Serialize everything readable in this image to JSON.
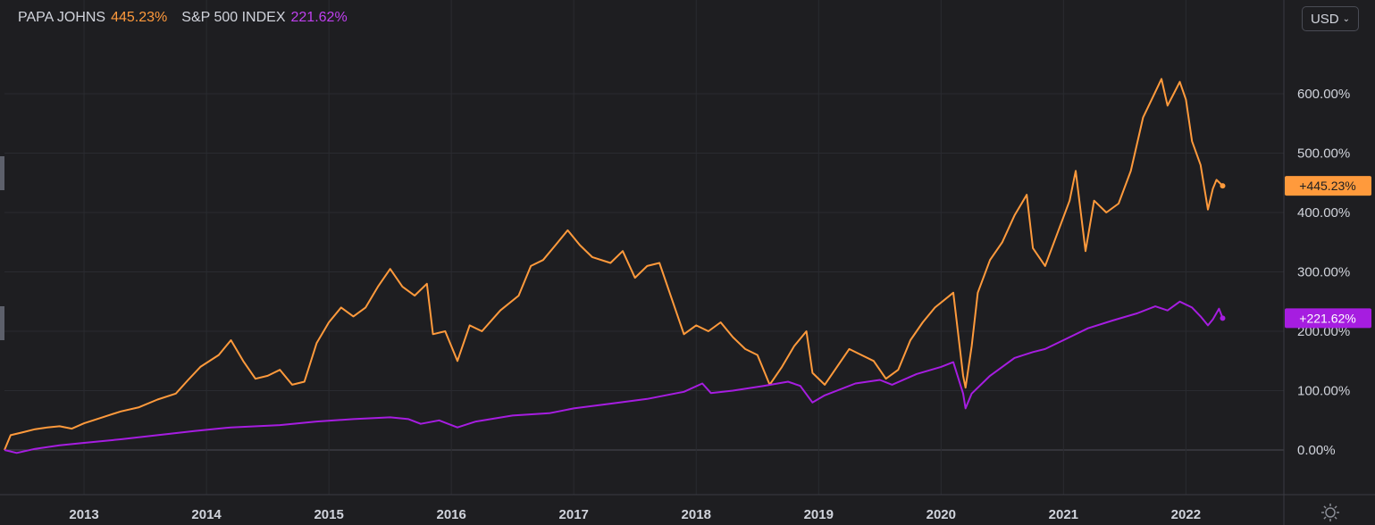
{
  "legend": {
    "series1_name": "PAPA JOHNS",
    "series1_value": "445.23%",
    "series2_name": "S&P 500 INDEX",
    "series2_value": "221.62%"
  },
  "currency_button": {
    "label": "USD"
  },
  "colors": {
    "background": "#1e1e21",
    "grid": "#2a2b30",
    "papa_johns": "#ff9a3c",
    "sp500": "#a61de0",
    "text": "#d1d4dc"
  },
  "chart_data": {
    "type": "line",
    "xlabel": "",
    "ylabel": "",
    "x_ticks": [
      "2013",
      "2014",
      "2015",
      "2016",
      "2017",
      "2018",
      "2019",
      "2020",
      "2021",
      "2022"
    ],
    "y_ticks": [
      "0.00%",
      "100.00%",
      "200.00%",
      "300.00%",
      "400.00%",
      "500.00%",
      "600.00%"
    ],
    "ylim": [
      -70,
      680
    ],
    "xlim": [
      2012.35,
      2022.8
    ],
    "grid": true,
    "legend_position": "top-left",
    "series": [
      {
        "name": "PAPA JOHNS",
        "color": "#ff9a3c",
        "last_label": "+445.23%",
        "points": [
          [
            2012.35,
            0
          ],
          [
            2012.4,
            25
          ],
          [
            2012.5,
            30
          ],
          [
            2012.6,
            35
          ],
          [
            2012.7,
            38
          ],
          [
            2012.8,
            40
          ],
          [
            2012.9,
            36
          ],
          [
            2013.0,
            45
          ],
          [
            2013.15,
            55
          ],
          [
            2013.3,
            65
          ],
          [
            2013.45,
            72
          ],
          [
            2013.6,
            85
          ],
          [
            2013.75,
            95
          ],
          [
            2013.85,
            118
          ],
          [
            2013.95,
            140
          ],
          [
            2014.1,
            160
          ],
          [
            2014.2,
            185
          ],
          [
            2014.3,
            150
          ],
          [
            2014.4,
            120
          ],
          [
            2014.5,
            125
          ],
          [
            2014.6,
            135
          ],
          [
            2014.7,
            110
          ],
          [
            2014.8,
            115
          ],
          [
            2014.9,
            180
          ],
          [
            2015.0,
            215
          ],
          [
            2015.1,
            240
          ],
          [
            2015.2,
            225
          ],
          [
            2015.3,
            240
          ],
          [
            2015.4,
            275
          ],
          [
            2015.5,
            305
          ],
          [
            2015.6,
            275
          ],
          [
            2015.7,
            260
          ],
          [
            2015.8,
            280
          ],
          [
            2015.85,
            195
          ],
          [
            2015.95,
            200
          ],
          [
            2016.05,
            150
          ],
          [
            2016.15,
            210
          ],
          [
            2016.25,
            200
          ],
          [
            2016.4,
            235
          ],
          [
            2016.55,
            260
          ],
          [
            2016.65,
            310
          ],
          [
            2016.75,
            320
          ],
          [
            2016.85,
            345
          ],
          [
            2016.95,
            370
          ],
          [
            2017.05,
            345
          ],
          [
            2017.15,
            325
          ],
          [
            2017.3,
            315
          ],
          [
            2017.4,
            335
          ],
          [
            2017.5,
            290
          ],
          [
            2017.6,
            310
          ],
          [
            2017.7,
            315
          ],
          [
            2017.8,
            255
          ],
          [
            2017.9,
            195
          ],
          [
            2018.0,
            210
          ],
          [
            2018.1,
            200
          ],
          [
            2018.2,
            215
          ],
          [
            2018.3,
            190
          ],
          [
            2018.4,
            170
          ],
          [
            2018.5,
            160
          ],
          [
            2018.6,
            110
          ],
          [
            2018.7,
            140
          ],
          [
            2018.8,
            175
          ],
          [
            2018.9,
            200
          ],
          [
            2018.95,
            130
          ],
          [
            2019.05,
            110
          ],
          [
            2019.15,
            140
          ],
          [
            2019.25,
            170
          ],
          [
            2019.35,
            160
          ],
          [
            2019.45,
            150
          ],
          [
            2019.55,
            120
          ],
          [
            2019.65,
            135
          ],
          [
            2019.75,
            185
          ],
          [
            2019.85,
            215
          ],
          [
            2019.95,
            240
          ],
          [
            2020.1,
            265
          ],
          [
            2020.18,
            125
          ],
          [
            2020.2,
            105
          ],
          [
            2020.25,
            175
          ],
          [
            2020.3,
            265
          ],
          [
            2020.4,
            320
          ],
          [
            2020.5,
            350
          ],
          [
            2020.6,
            395
          ],
          [
            2020.7,
            430
          ],
          [
            2020.75,
            340
          ],
          [
            2020.85,
            310
          ],
          [
            2020.95,
            365
          ],
          [
            2021.05,
            420
          ],
          [
            2021.1,
            470
          ],
          [
            2021.18,
            335
          ],
          [
            2021.25,
            420
          ],
          [
            2021.35,
            400
          ],
          [
            2021.45,
            415
          ],
          [
            2021.55,
            470
          ],
          [
            2021.65,
            560
          ],
          [
            2021.72,
            590
          ],
          [
            2021.8,
            625
          ],
          [
            2021.85,
            580
          ],
          [
            2021.9,
            600
          ],
          [
            2021.95,
            620
          ],
          [
            2022.0,
            590
          ],
          [
            2022.05,
            520
          ],
          [
            2022.12,
            480
          ],
          [
            2022.18,
            405
          ],
          [
            2022.22,
            440
          ],
          [
            2022.25,
            455
          ],
          [
            2022.3,
            445
          ]
        ]
      },
      {
        "name": "S&P 500 INDEX",
        "color": "#a61de0",
        "last_label": "+221.62%",
        "points": [
          [
            2012.35,
            0
          ],
          [
            2012.45,
            -5
          ],
          [
            2012.6,
            2
          ],
          [
            2012.8,
            8
          ],
          [
            2013.0,
            12
          ],
          [
            2013.3,
            18
          ],
          [
            2013.6,
            25
          ],
          [
            2013.9,
            32
          ],
          [
            2014.2,
            38
          ],
          [
            2014.6,
            42
          ],
          [
            2014.9,
            48
          ],
          [
            2015.2,
            52
          ],
          [
            2015.5,
            55
          ],
          [
            2015.65,
            52
          ],
          [
            2015.75,
            44
          ],
          [
            2015.9,
            50
          ],
          [
            2016.05,
            38
          ],
          [
            2016.2,
            48
          ],
          [
            2016.5,
            58
          ],
          [
            2016.8,
            62
          ],
          [
            2017.0,
            70
          ],
          [
            2017.3,
            78
          ],
          [
            2017.6,
            86
          ],
          [
            2017.9,
            98
          ],
          [
            2018.05,
            112
          ],
          [
            2018.12,
            96
          ],
          [
            2018.3,
            100
          ],
          [
            2018.55,
            108
          ],
          [
            2018.75,
            115
          ],
          [
            2018.85,
            108
          ],
          [
            2018.95,
            80
          ],
          [
            2019.05,
            92
          ],
          [
            2019.3,
            112
          ],
          [
            2019.5,
            118
          ],
          [
            2019.6,
            110
          ],
          [
            2019.8,
            128
          ],
          [
            2020.0,
            140
          ],
          [
            2020.1,
            148
          ],
          [
            2020.18,
            95
          ],
          [
            2020.2,
            70
          ],
          [
            2020.25,
            95
          ],
          [
            2020.4,
            125
          ],
          [
            2020.6,
            155
          ],
          [
            2020.75,
            165
          ],
          [
            2020.85,
            170
          ],
          [
            2021.0,
            185
          ],
          [
            2021.2,
            205
          ],
          [
            2021.4,
            218
          ],
          [
            2021.6,
            230
          ],
          [
            2021.75,
            242
          ],
          [
            2021.85,
            235
          ],
          [
            2021.95,
            250
          ],
          [
            2022.05,
            240
          ],
          [
            2022.12,
            225
          ],
          [
            2022.18,
            210
          ],
          [
            2022.22,
            220
          ],
          [
            2022.27,
            238
          ],
          [
            2022.3,
            222
          ]
        ]
      }
    ]
  }
}
